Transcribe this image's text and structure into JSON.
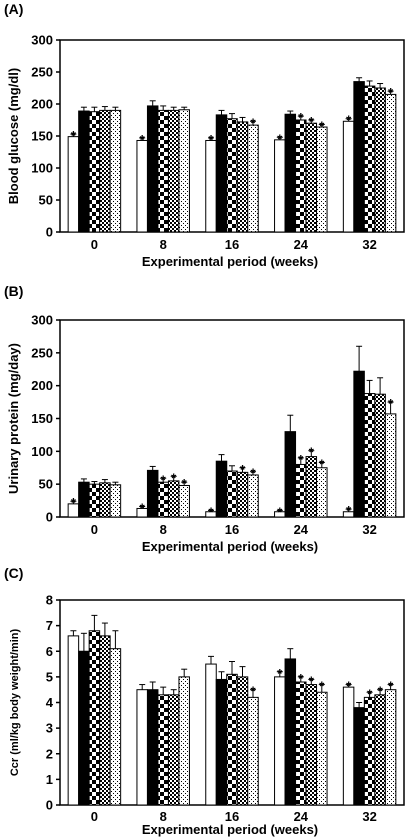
{
  "chart_data": [
    {
      "type": "bar",
      "panel_label": "(A)",
      "ylabel": "Blood glucose (mg/dl)",
      "xlabel": "Experimental period (weeks)",
      "categories": [
        "0",
        "8",
        "16",
        "24",
        "32"
      ],
      "ylim": [
        0,
        300
      ],
      "yticks": [
        0,
        50,
        100,
        150,
        200,
        250,
        300
      ],
      "grid": false,
      "series": [
        {
          "pattern": "white",
          "values": [
            149,
            143,
            143,
            144,
            173
          ],
          "errors": [
            4,
            4,
            4,
            4,
            4
          ],
          "sig": [
            true,
            true,
            true,
            true,
            true
          ]
        },
        {
          "pattern": "black",
          "values": [
            189,
            197,
            183,
            184,
            235
          ],
          "errors": [
            6,
            8,
            7,
            5,
            6
          ],
          "sig": [
            false,
            false,
            false,
            false,
            false
          ]
        },
        {
          "pattern": "check-large",
          "values": [
            188,
            190,
            177,
            175,
            228
          ],
          "errors": [
            7,
            7,
            8,
            6,
            8
          ],
          "sig": [
            false,
            false,
            false,
            true,
            false
          ]
        },
        {
          "pattern": "check-small",
          "values": [
            190,
            190,
            172,
            170,
            225
          ],
          "errors": [
            6,
            5,
            7,
            5,
            7
          ],
          "sig": [
            false,
            false,
            false,
            true,
            false
          ]
        },
        {
          "pattern": "dots",
          "values": [
            190,
            191,
            167,
            164,
            215
          ],
          "errors": [
            5,
            4,
            6,
            4,
            5
          ],
          "sig": [
            false,
            false,
            true,
            true,
            true
          ]
        }
      ]
    },
    {
      "type": "bar",
      "panel_label": "(B)",
      "ylabel": "Urinary protein (mg/day)",
      "xlabel": "Experimental period (weeks)",
      "categories": [
        "0",
        "8",
        "16",
        "24",
        "32"
      ],
      "ylim": [
        0,
        300
      ],
      "yticks": [
        0,
        50,
        100,
        150,
        200,
        250,
        300
      ],
      "grid": false,
      "series": [
        {
          "pattern": "white",
          "values": [
            20,
            13,
            8,
            8,
            8
          ],
          "errors": [
            4,
            3,
            2,
            2,
            4
          ],
          "sig": [
            true,
            true,
            true,
            true,
            true
          ]
        },
        {
          "pattern": "black",
          "values": [
            53,
            71,
            85,
            130,
            222
          ],
          "errors": [
            5,
            6,
            10,
            25,
            38
          ],
          "sig": [
            false,
            false,
            false,
            false,
            false
          ]
        },
        {
          "pattern": "check-large",
          "values": [
            50,
            53,
            70,
            80,
            188
          ],
          "errors": [
            4,
            6,
            8,
            10,
            20
          ],
          "sig": [
            false,
            true,
            false,
            true,
            false
          ]
        },
        {
          "pattern": "check-small",
          "values": [
            52,
            55,
            68,
            92,
            187
          ],
          "errors": [
            5,
            7,
            7,
            9,
            25
          ],
          "sig": [
            false,
            true,
            true,
            true,
            false
          ]
        },
        {
          "pattern": "dots",
          "values": [
            49,
            48,
            64,
            75,
            157
          ],
          "errors": [
            4,
            5,
            5,
            8,
            18
          ],
          "sig": [
            false,
            true,
            true,
            true,
            true
          ]
        }
      ]
    },
    {
      "type": "bar",
      "panel_label": "(C)",
      "ylabel": "Ccr (ml/kg body weight/min)",
      "xlabel": "Experimental period (weeks)",
      "categories": [
        "0",
        "8",
        "16",
        "24",
        "32"
      ],
      "ylim": [
        0,
        8
      ],
      "yticks": [
        0,
        1,
        2,
        3,
        4,
        5,
        6,
        7,
        8
      ],
      "grid": false,
      "series": [
        {
          "pattern": "white",
          "values": [
            6.6,
            4.5,
            5.5,
            5.0,
            4.6
          ],
          "errors": [
            0.2,
            0.2,
            0.3,
            0.2,
            0.1
          ],
          "sig": [
            false,
            false,
            false,
            true,
            true
          ]
        },
        {
          "pattern": "black",
          "values": [
            6.0,
            4.5,
            4.9,
            5.7,
            3.8
          ],
          "errors": [
            0.7,
            0.3,
            0.3,
            0.4,
            0.2
          ],
          "sig": [
            false,
            false,
            false,
            false,
            false
          ]
        },
        {
          "pattern": "check-large",
          "values": [
            6.8,
            4.3,
            5.1,
            4.8,
            4.2
          ],
          "errors": [
            0.6,
            0.3,
            0.5,
            0.2,
            0.2
          ],
          "sig": [
            false,
            false,
            false,
            true,
            true
          ]
        },
        {
          "pattern": "check-small",
          "values": [
            6.6,
            4.3,
            5.0,
            4.7,
            4.3
          ],
          "errors": [
            0.5,
            0.2,
            0.4,
            0.2,
            0.2
          ],
          "sig": [
            false,
            false,
            false,
            true,
            true
          ]
        },
        {
          "pattern": "dots",
          "values": [
            6.1,
            5.0,
            4.2,
            4.4,
            4.5
          ],
          "errors": [
            0.7,
            0.3,
            0.3,
            0.3,
            0.2
          ],
          "sig": [
            false,
            false,
            true,
            true,
            true
          ]
        }
      ]
    }
  ]
}
